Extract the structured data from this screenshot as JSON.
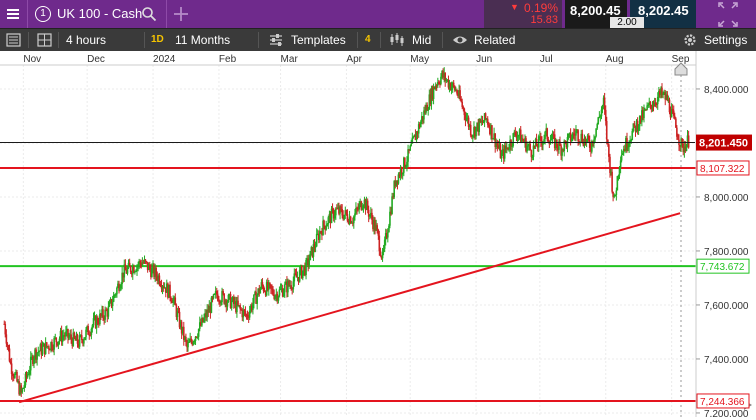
{
  "topbar": {
    "menu_icon": "hamburger-icon",
    "instrument_number": "1",
    "instrument_name": "UK 100 - Cash",
    "search_icon": "search-icon",
    "add_icon": "plus-icon",
    "change_pct": "0.19%",
    "change_pts": "15.83",
    "change_direction": "down",
    "sell_price": "8,200.45",
    "buy_price": "8,202.45",
    "spread": "2.00",
    "expand_icon": "expand-icon",
    "collapse_icon": "collapse-icon"
  },
  "toolbar": {
    "layout_icon": "panel-icon",
    "grid_icon": "grid-icon",
    "interval": "4 hours",
    "range_badge": "1D",
    "range": "11 Months",
    "templates_label": "Templates",
    "indicator_count": "4",
    "price_type": "Mid",
    "related_label": "Related",
    "settings_label": "Settings"
  },
  "chart_data": {
    "type": "candlestick",
    "instrument": "UK 100 - Cash",
    "x_ticks": [
      "Nov",
      "Dec",
      "2024",
      "Feb",
      "Mar",
      "Apr",
      "May",
      "Jun",
      "Jul",
      "Aug",
      "Sep"
    ],
    "y_ticks": [
      "8,400.000",
      "8,200.000",
      "8,000.000",
      "7,800.000",
      "7,600.000",
      "7,400.000",
      "7,200.000"
    ],
    "y_tick_values": [
      8400,
      8200,
      8000,
      7800,
      7600,
      7400,
      7200
    ],
    "ylim": [
      7185,
      8485
    ],
    "current_price": {
      "value": 8201.45,
      "label": "8,201.450"
    },
    "horizontal_lines": [
      {
        "value": 8107.322,
        "label": "8,107.322",
        "color": "#e4141e"
      },
      {
        "value": 7743.672,
        "label": "7,743.672",
        "color": "#22c422"
      },
      {
        "value": 7244.366,
        "label": "7,244.366",
        "color": "#e4141e"
      }
    ],
    "trendline": {
      "from": {
        "date": "2023-10-30",
        "value": 7240
      },
      "to": {
        "date": "2024-09-05",
        "value": 7940
      },
      "color": "#e4141e"
    },
    "path": [
      [
        "2023-10-23",
        7530
      ],
      [
        "2023-10-26",
        7380
      ],
      [
        "2023-10-31",
        7270
      ],
      [
        "2023-11-06",
        7420
      ],
      [
        "2023-11-13",
        7450
      ],
      [
        "2023-11-20",
        7490
      ],
      [
        "2023-11-27",
        7460
      ],
      [
        "2023-12-04",
        7530
      ],
      [
        "2023-12-11",
        7580
      ],
      [
        "2023-12-18",
        7720
      ],
      [
        "2023-12-27",
        7760
      ],
      [
        "2024-01-04",
        7700
      ],
      [
        "2024-01-10",
        7630
      ],
      [
        "2024-01-17",
        7440
      ],
      [
        "2024-01-24",
        7530
      ],
      [
        "2024-01-31",
        7640
      ],
      [
        "2024-02-07",
        7610
      ],
      [
        "2024-02-14",
        7560
      ],
      [
        "2024-02-21",
        7670
      ],
      [
        "2024-02-28",
        7640
      ],
      [
        "2024-03-06",
        7680
      ],
      [
        "2024-03-13",
        7740
      ],
      [
        "2024-03-20",
        7880
      ],
      [
        "2024-03-27",
        7950
      ],
      [
        "2024-04-04",
        7920
      ],
      [
        "2024-04-09",
        7990
      ],
      [
        "2024-04-15",
        7880
      ],
      [
        "2024-04-18",
        7770
      ],
      [
        "2024-04-24",
        8060
      ],
      [
        "2024-04-30",
        8150
      ],
      [
        "2024-05-06",
        8280
      ],
      [
        "2024-05-13",
        8420
      ],
      [
        "2024-05-16",
        8450
      ],
      [
        "2024-05-23",
        8390
      ],
      [
        "2024-05-30",
        8240
      ],
      [
        "2024-06-06",
        8290
      ],
      [
        "2024-06-13",
        8150
      ],
      [
        "2024-06-20",
        8240
      ],
      [
        "2024-06-27",
        8170
      ],
      [
        "2024-07-04",
        8230
      ],
      [
        "2024-07-11",
        8180
      ],
      [
        "2024-07-18",
        8240
      ],
      [
        "2024-07-25",
        8190
      ],
      [
        "2024-07-31",
        8350
      ],
      [
        "2024-08-02",
        8180
      ],
      [
        "2024-08-05",
        7980
      ],
      [
        "2024-08-08",
        8160
      ],
      [
        "2024-08-15",
        8260
      ],
      [
        "2024-08-22",
        8340
      ],
      [
        "2024-08-27",
        8380
      ],
      [
        "2024-08-30",
        8360
      ],
      [
        "2024-09-04",
        8230
      ],
      [
        "2024-09-06",
        8180
      ],
      [
        "2024-09-09",
        8210
      ]
    ]
  }
}
